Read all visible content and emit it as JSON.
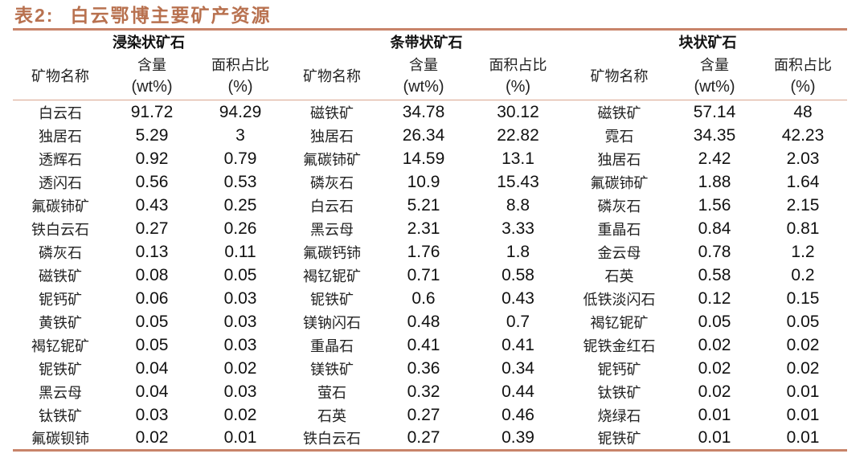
{
  "title": {
    "prefix": "表",
    "number": "2:",
    "text": "白云鄂博主要矿产资源"
  },
  "colors": {
    "title": "#b8714f",
    "rule": "#c8846a",
    "header_rule": "#d9a58e"
  },
  "groups": [
    {
      "label": "浸染状矿石"
    },
    {
      "label": "条带状矿石"
    },
    {
      "label": "块状矿石"
    }
  ],
  "column_headers": {
    "name": "矿物名称",
    "content_line1": "含量",
    "content_line2": "(wt%)",
    "area_line1": "面积占比",
    "area_line2": "(%)"
  },
  "chart_data": {
    "type": "table",
    "title": "表2: 白云鄂博主要矿产资源",
    "groups": [
      "浸染状矿石",
      "条带状矿石",
      "块状矿石"
    ],
    "columns": [
      "矿物名称",
      "含量(wt%)",
      "面积占比(%)"
    ],
    "rows": [
      [
        [
          "白云石",
          "91.72",
          "94.29"
        ],
        [
          "磁铁矿",
          "34.78",
          "30.12"
        ],
        [
          "磁铁矿",
          "57.14",
          "48"
        ]
      ],
      [
        [
          "独居石",
          "5.29",
          "3"
        ],
        [
          "独居石",
          "26.34",
          "22.82"
        ],
        [
          "霓石",
          "34.35",
          "42.23"
        ]
      ],
      [
        [
          "透辉石",
          "0.92",
          "0.79"
        ],
        [
          "氟碳铈矿",
          "14.59",
          "13.1"
        ],
        [
          "独居石",
          "2.42",
          "2.03"
        ]
      ],
      [
        [
          "透闪石",
          "0.56",
          "0.53"
        ],
        [
          "磷灰石",
          "10.9",
          "15.43"
        ],
        [
          "氟碳铈矿",
          "1.88",
          "1.64"
        ]
      ],
      [
        [
          "氟碳铈矿",
          "0.43",
          "0.25"
        ],
        [
          "白云石",
          "5.21",
          "8.8"
        ],
        [
          "磷灰石",
          "1.56",
          "2.15"
        ]
      ],
      [
        [
          "铁白云石",
          "0.27",
          "0.26"
        ],
        [
          "黑云母",
          "2.31",
          "3.33"
        ],
        [
          "重晶石",
          "0.84",
          "0.81"
        ]
      ],
      [
        [
          "磷灰石",
          "0.13",
          "0.11"
        ],
        [
          "氟碳钙铈",
          "1.76",
          "1.8"
        ],
        [
          "金云母",
          "0.78",
          "1.2"
        ]
      ],
      [
        [
          "磁铁矿",
          "0.08",
          "0.05"
        ],
        [
          "褐钇铌矿",
          "0.71",
          "0.58"
        ],
        [
          "石英",
          "0.58",
          "0.2"
        ]
      ],
      [
        [
          "铌钙矿",
          "0.06",
          "0.03"
        ],
        [
          "铌铁矿",
          "0.6",
          "0.43"
        ],
        [
          "低铁淡闪石",
          "0.12",
          "0.15"
        ]
      ],
      [
        [
          "黄铁矿",
          "0.05",
          "0.03"
        ],
        [
          "镁钠闪石",
          "0.48",
          "0.7"
        ],
        [
          "褐钇铌矿",
          "0.05",
          "0.05"
        ]
      ],
      [
        [
          "褐钇铌矿",
          "0.05",
          "0.03"
        ],
        [
          "重晶石",
          "0.41",
          "0.41"
        ],
        [
          "铌铁金红石",
          "0.02",
          "0.02"
        ]
      ],
      [
        [
          "铌铁矿",
          "0.04",
          "0.02"
        ],
        [
          "镁铁矿",
          "0.36",
          "0.34"
        ],
        [
          "铌钙矿",
          "0.02",
          "0.02"
        ]
      ],
      [
        [
          "黑云母",
          "0.04",
          "0.03"
        ],
        [
          "萤石",
          "0.32",
          "0.44"
        ],
        [
          "钛铁矿",
          "0.02",
          "0.01"
        ]
      ],
      [
        [
          "钛铁矿",
          "0.03",
          "0.02"
        ],
        [
          "石英",
          "0.27",
          "0.46"
        ],
        [
          "烧绿石",
          "0.01",
          "0.01"
        ]
      ],
      [
        [
          "氟碳钡铈",
          "0.02",
          "0.01"
        ],
        [
          "铁白云石",
          "0.27",
          "0.39"
        ],
        [
          "铌铁矿",
          "0.01",
          "0.01"
        ]
      ]
    ]
  },
  "rows": [
    {
      "g1": {
        "name": "白云石",
        "content": "91.72",
        "area": "94.29"
      },
      "g2": {
        "name": "磁铁矿",
        "content": "34.78",
        "area": "30.12"
      },
      "g3": {
        "name": "磁铁矿",
        "content": "57.14",
        "area": "48"
      }
    },
    {
      "g1": {
        "name": "独居石",
        "content": "5.29",
        "area": "3"
      },
      "g2": {
        "name": "独居石",
        "content": "26.34",
        "area": "22.82"
      },
      "g3": {
        "name": "霓石",
        "content": "34.35",
        "area": "42.23"
      }
    },
    {
      "g1": {
        "name": "透辉石",
        "content": "0.92",
        "area": "0.79"
      },
      "g2": {
        "name": "氟碳铈矿",
        "content": "14.59",
        "area": "13.1"
      },
      "g3": {
        "name": "独居石",
        "content": "2.42",
        "area": "2.03"
      }
    },
    {
      "g1": {
        "name": "透闪石",
        "content": "0.56",
        "area": "0.53"
      },
      "g2": {
        "name": "磷灰石",
        "content": "10.9",
        "area": "15.43"
      },
      "g3": {
        "name": "氟碳铈矿",
        "content": "1.88",
        "area": "1.64"
      }
    },
    {
      "g1": {
        "name": "氟碳铈矿",
        "content": "0.43",
        "area": "0.25"
      },
      "g2": {
        "name": "白云石",
        "content": "5.21",
        "area": "8.8"
      },
      "g3": {
        "name": "磷灰石",
        "content": "1.56",
        "area": "2.15"
      }
    },
    {
      "g1": {
        "name": "铁白云石",
        "content": "0.27",
        "area": "0.26"
      },
      "g2": {
        "name": "黑云母",
        "content": "2.31",
        "area": "3.33"
      },
      "g3": {
        "name": "重晶石",
        "content": "0.84",
        "area": "0.81"
      }
    },
    {
      "g1": {
        "name": "磷灰石",
        "content": "0.13",
        "area": "0.11"
      },
      "g2": {
        "name": "氟碳钙铈",
        "content": "1.76",
        "area": "1.8"
      },
      "g3": {
        "name": "金云母",
        "content": "0.78",
        "area": "1.2"
      }
    },
    {
      "g1": {
        "name": "磁铁矿",
        "content": "0.08",
        "area": "0.05"
      },
      "g2": {
        "name": "褐钇铌矿",
        "content": "0.71",
        "area": "0.58"
      },
      "g3": {
        "name": "石英",
        "content": "0.58",
        "area": "0.2"
      }
    },
    {
      "g1": {
        "name": "铌钙矿",
        "content": "0.06",
        "area": "0.03"
      },
      "g2": {
        "name": "铌铁矿",
        "content": "0.6",
        "area": "0.43"
      },
      "g3": {
        "name": "低铁淡闪石",
        "content": "0.12",
        "area": "0.15"
      }
    },
    {
      "g1": {
        "name": "黄铁矿",
        "content": "0.05",
        "area": "0.03"
      },
      "g2": {
        "name": "镁钠闪石",
        "content": "0.48",
        "area": "0.7"
      },
      "g3": {
        "name": "褐钇铌矿",
        "content": "0.05",
        "area": "0.05"
      }
    },
    {
      "g1": {
        "name": "褐钇铌矿",
        "content": "0.05",
        "area": "0.03"
      },
      "g2": {
        "name": "重晶石",
        "content": "0.41",
        "area": "0.41"
      },
      "g3": {
        "name": "铌铁金红石",
        "content": "0.02",
        "area": "0.02"
      }
    },
    {
      "g1": {
        "name": "铌铁矿",
        "content": "0.04",
        "area": "0.02"
      },
      "g2": {
        "name": "镁铁矿",
        "content": "0.36",
        "area": "0.34"
      },
      "g3": {
        "name": "铌钙矿",
        "content": "0.02",
        "area": "0.02"
      }
    },
    {
      "g1": {
        "name": "黑云母",
        "content": "0.04",
        "area": "0.03"
      },
      "g2": {
        "name": "萤石",
        "content": "0.32",
        "area": "0.44"
      },
      "g3": {
        "name": "钛铁矿",
        "content": "0.02",
        "area": "0.01"
      }
    },
    {
      "g1": {
        "name": "钛铁矿",
        "content": "0.03",
        "area": "0.02"
      },
      "g2": {
        "name": "石英",
        "content": "0.27",
        "area": "0.46"
      },
      "g3": {
        "name": "烧绿石",
        "content": "0.01",
        "area": "0.01"
      }
    },
    {
      "g1": {
        "name": "氟碳钡铈",
        "content": "0.02",
        "area": "0.01"
      },
      "g2": {
        "name": "铁白云石",
        "content": "0.27",
        "area": "0.39"
      },
      "g3": {
        "name": "铌铁矿",
        "content": "0.01",
        "area": "0.01"
      }
    }
  ]
}
